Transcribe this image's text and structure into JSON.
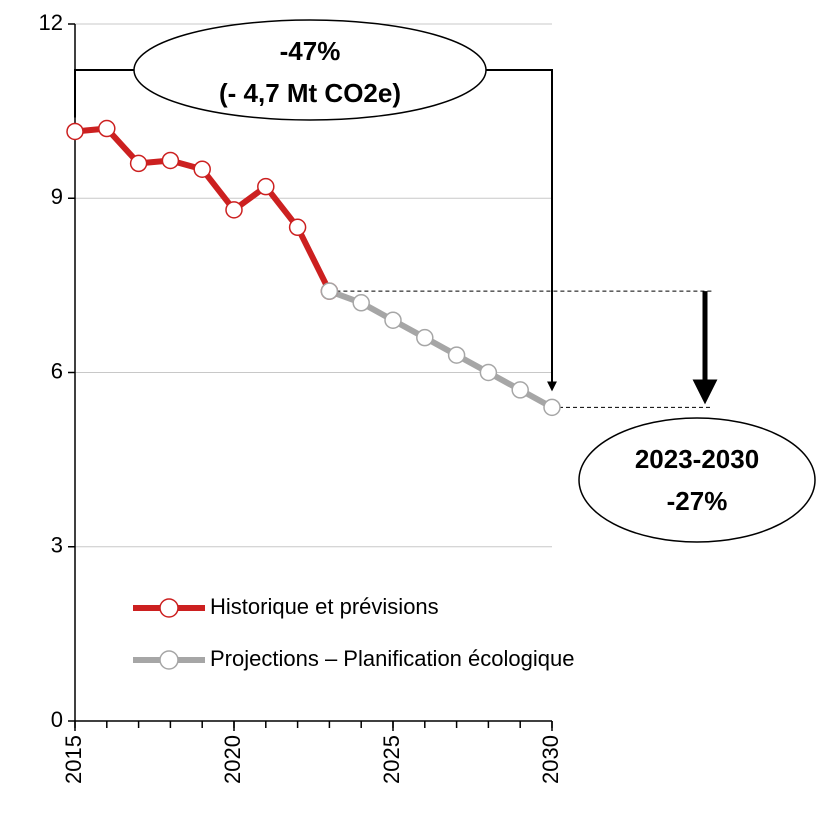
{
  "chart_data": {
    "type": "line",
    "xlim": [
      2015,
      2030
    ],
    "xticks": [
      2015,
      2020,
      2025,
      2030
    ],
    "xminorticks": [
      2015,
      2016,
      2017,
      2018,
      2019,
      2020,
      2021,
      2022,
      2023,
      2024,
      2025,
      2026,
      2027,
      2028,
      2029,
      2030
    ],
    "ylim": [
      0,
      12
    ],
    "yticks": [
      0,
      3,
      6,
      9,
      12
    ],
    "grid": true,
    "series": [
      {
        "name": "Historique et prévisions",
        "color": "#cc2020",
        "x": [
          2015,
          2016,
          2017,
          2018,
          2019,
          2020,
          2021,
          2022,
          2023
        ],
        "values": [
          10.15,
          10.2,
          9.6,
          9.65,
          9.5,
          8.8,
          9.2,
          8.5,
          7.4
        ]
      },
      {
        "name": "Projections – Planification écologique",
        "color": "#a6a6a6",
        "x": [
          2023,
          2024,
          2025,
          2026,
          2027,
          2028,
          2029,
          2030
        ],
        "values": [
          7.4,
          7.2,
          6.9,
          6.6,
          6.3,
          6.0,
          5.7,
          5.4
        ]
      }
    ],
    "annotations": [
      {
        "lines": [
          "-47%",
          "(- 4,7 Mt CO2e)"
        ]
      },
      {
        "lines": [
          "2023-2030",
          "-27%"
        ]
      }
    ]
  }
}
